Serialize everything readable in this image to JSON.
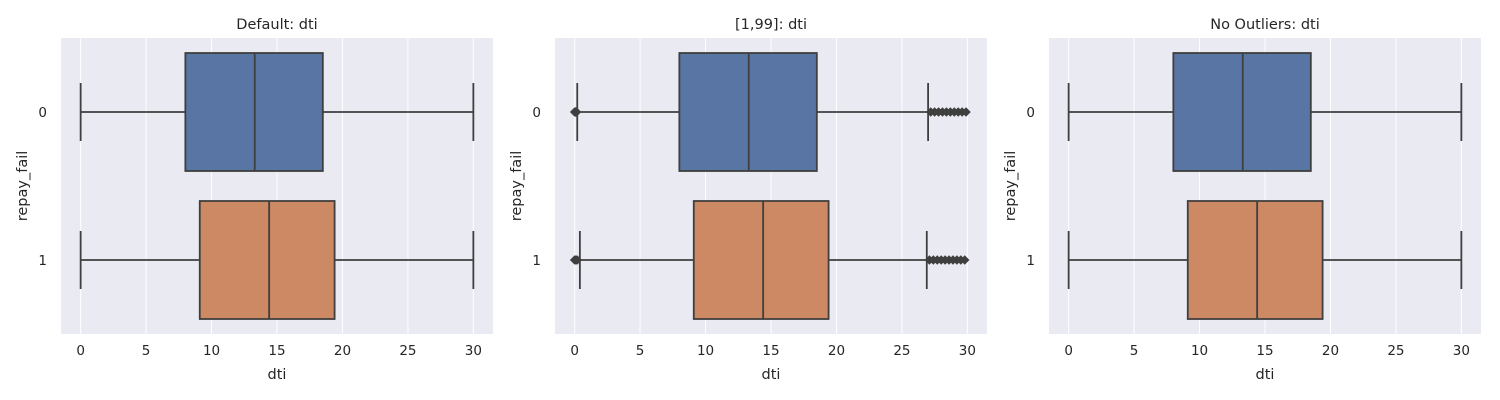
{
  "colors": {
    "background": "#EAEAF2",
    "grid": "#FFFFFF",
    "line": "#3F3F3F",
    "box_0": "#5875A4",
    "box_1": "#CC8963"
  },
  "chart_data": [
    {
      "type": "boxplot",
      "orientation": "horizontal",
      "title": "Default: dti",
      "xlabel": "dti",
      "ylabel": "repay_fail",
      "xlim": [
        -1.5,
        31.5
      ],
      "xticks": [
        0,
        5,
        10,
        15,
        20,
        25,
        30
      ],
      "grid": true,
      "categories": [
        "0",
        "1"
      ],
      "boxes": [
        {
          "category": "0",
          "whisker_low": 0,
          "q1": 8.0,
          "median": 13.3,
          "q3": 18.5,
          "whisker_high": 30,
          "outliers": []
        },
        {
          "category": "1",
          "whisker_low": 0,
          "q1": 9.1,
          "median": 14.4,
          "q3": 19.4,
          "whisker_high": 30,
          "outliers": []
        }
      ]
    },
    {
      "type": "boxplot",
      "orientation": "horizontal",
      "title": "[1,99]: dti",
      "xlabel": "dti",
      "ylabel": "repay_fail",
      "xlim": [
        -1.5,
        31.5
      ],
      "xticks": [
        0,
        5,
        10,
        15,
        20,
        25,
        30
      ],
      "grid": true,
      "categories": [
        "0",
        "1"
      ],
      "boxes": [
        {
          "category": "0",
          "whisker_low": 0.2,
          "q1": 8.0,
          "median": 13.3,
          "q3": 18.5,
          "whisker_high": 27.0,
          "outliers": [
            0.0,
            0.05,
            0.1,
            0.15,
            27.2,
            27.5,
            27.8,
            28.1,
            28.4,
            28.7,
            29.0,
            29.3,
            29.6,
            29.9
          ]
        },
        {
          "category": "1",
          "whisker_low": 0.4,
          "q1": 9.1,
          "median": 14.4,
          "q3": 19.4,
          "whisker_high": 26.9,
          "outliers": [
            0.0,
            0.1,
            0.2,
            27.1,
            27.4,
            27.7,
            28.0,
            28.3,
            28.6,
            28.9,
            29.2,
            29.5,
            29.8
          ]
        }
      ]
    },
    {
      "type": "boxplot",
      "orientation": "horizontal",
      "title": "No Outliers: dti",
      "xlabel": "dti",
      "ylabel": "repay_fail",
      "xlim": [
        -1.5,
        31.5
      ],
      "xticks": [
        0,
        5,
        10,
        15,
        20,
        25,
        30
      ],
      "grid": true,
      "categories": [
        "0",
        "1"
      ],
      "boxes": [
        {
          "category": "0",
          "whisker_low": 0,
          "q1": 8.0,
          "median": 13.3,
          "q3": 18.5,
          "whisker_high": 30,
          "outliers": []
        },
        {
          "category": "1",
          "whisker_low": 0,
          "q1": 9.1,
          "median": 14.4,
          "q3": 19.4,
          "whisker_high": 30,
          "outliers": []
        }
      ]
    }
  ]
}
